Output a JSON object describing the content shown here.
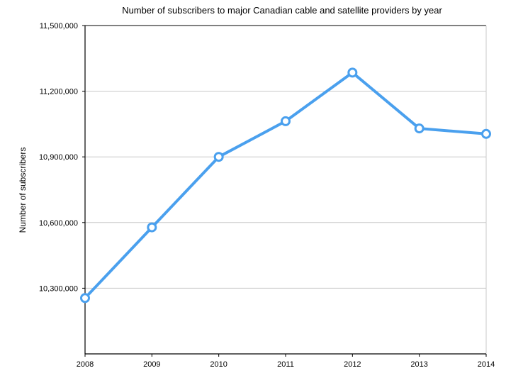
{
  "chart_data": {
    "type": "line",
    "title": "Number of subscribers to major Canadian cable and satellite providers by year",
    "xlabel": "",
    "ylabel": "Number of subscribers",
    "categories": [
      "2008",
      "2009",
      "2010",
      "2011",
      "2012",
      "2013",
      "2014"
    ],
    "series": [
      {
        "values": [
          10255000,
          10578000,
          10900000,
          11063000,
          11285000,
          11030000,
          11005000
        ],
        "color": "#4aa0ee"
      }
    ],
    "ylim": [
      10000000,
      11500000
    ],
    "yticks": [
      10300000,
      10600000,
      10900000,
      11200000,
      11500000
    ],
    "ytick_labels": [
      "10,300,000",
      "10,600,000",
      "10,900,000",
      "11,200,000",
      "11,500,000"
    ],
    "grid": true,
    "legend": "none"
  }
}
